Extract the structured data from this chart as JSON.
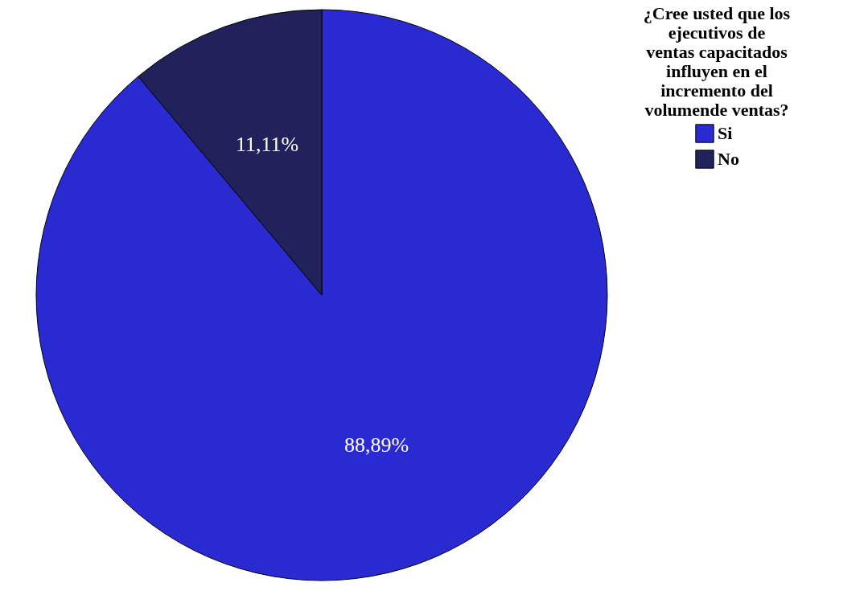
{
  "chart_data": {
    "type": "pie",
    "legend_title": "¿Cree usted que los ejecutivos de ventas capacitados influyen en el incremento del volumende ventas?",
    "categories": [
      "Si",
      "No"
    ],
    "values": [
      88.89,
      11.11
    ],
    "colors": [
      "#2a2ad2",
      "#21225c"
    ],
    "value_labels": [
      "88,89%",
      "11,11%"
    ],
    "legend": "top right"
  }
}
